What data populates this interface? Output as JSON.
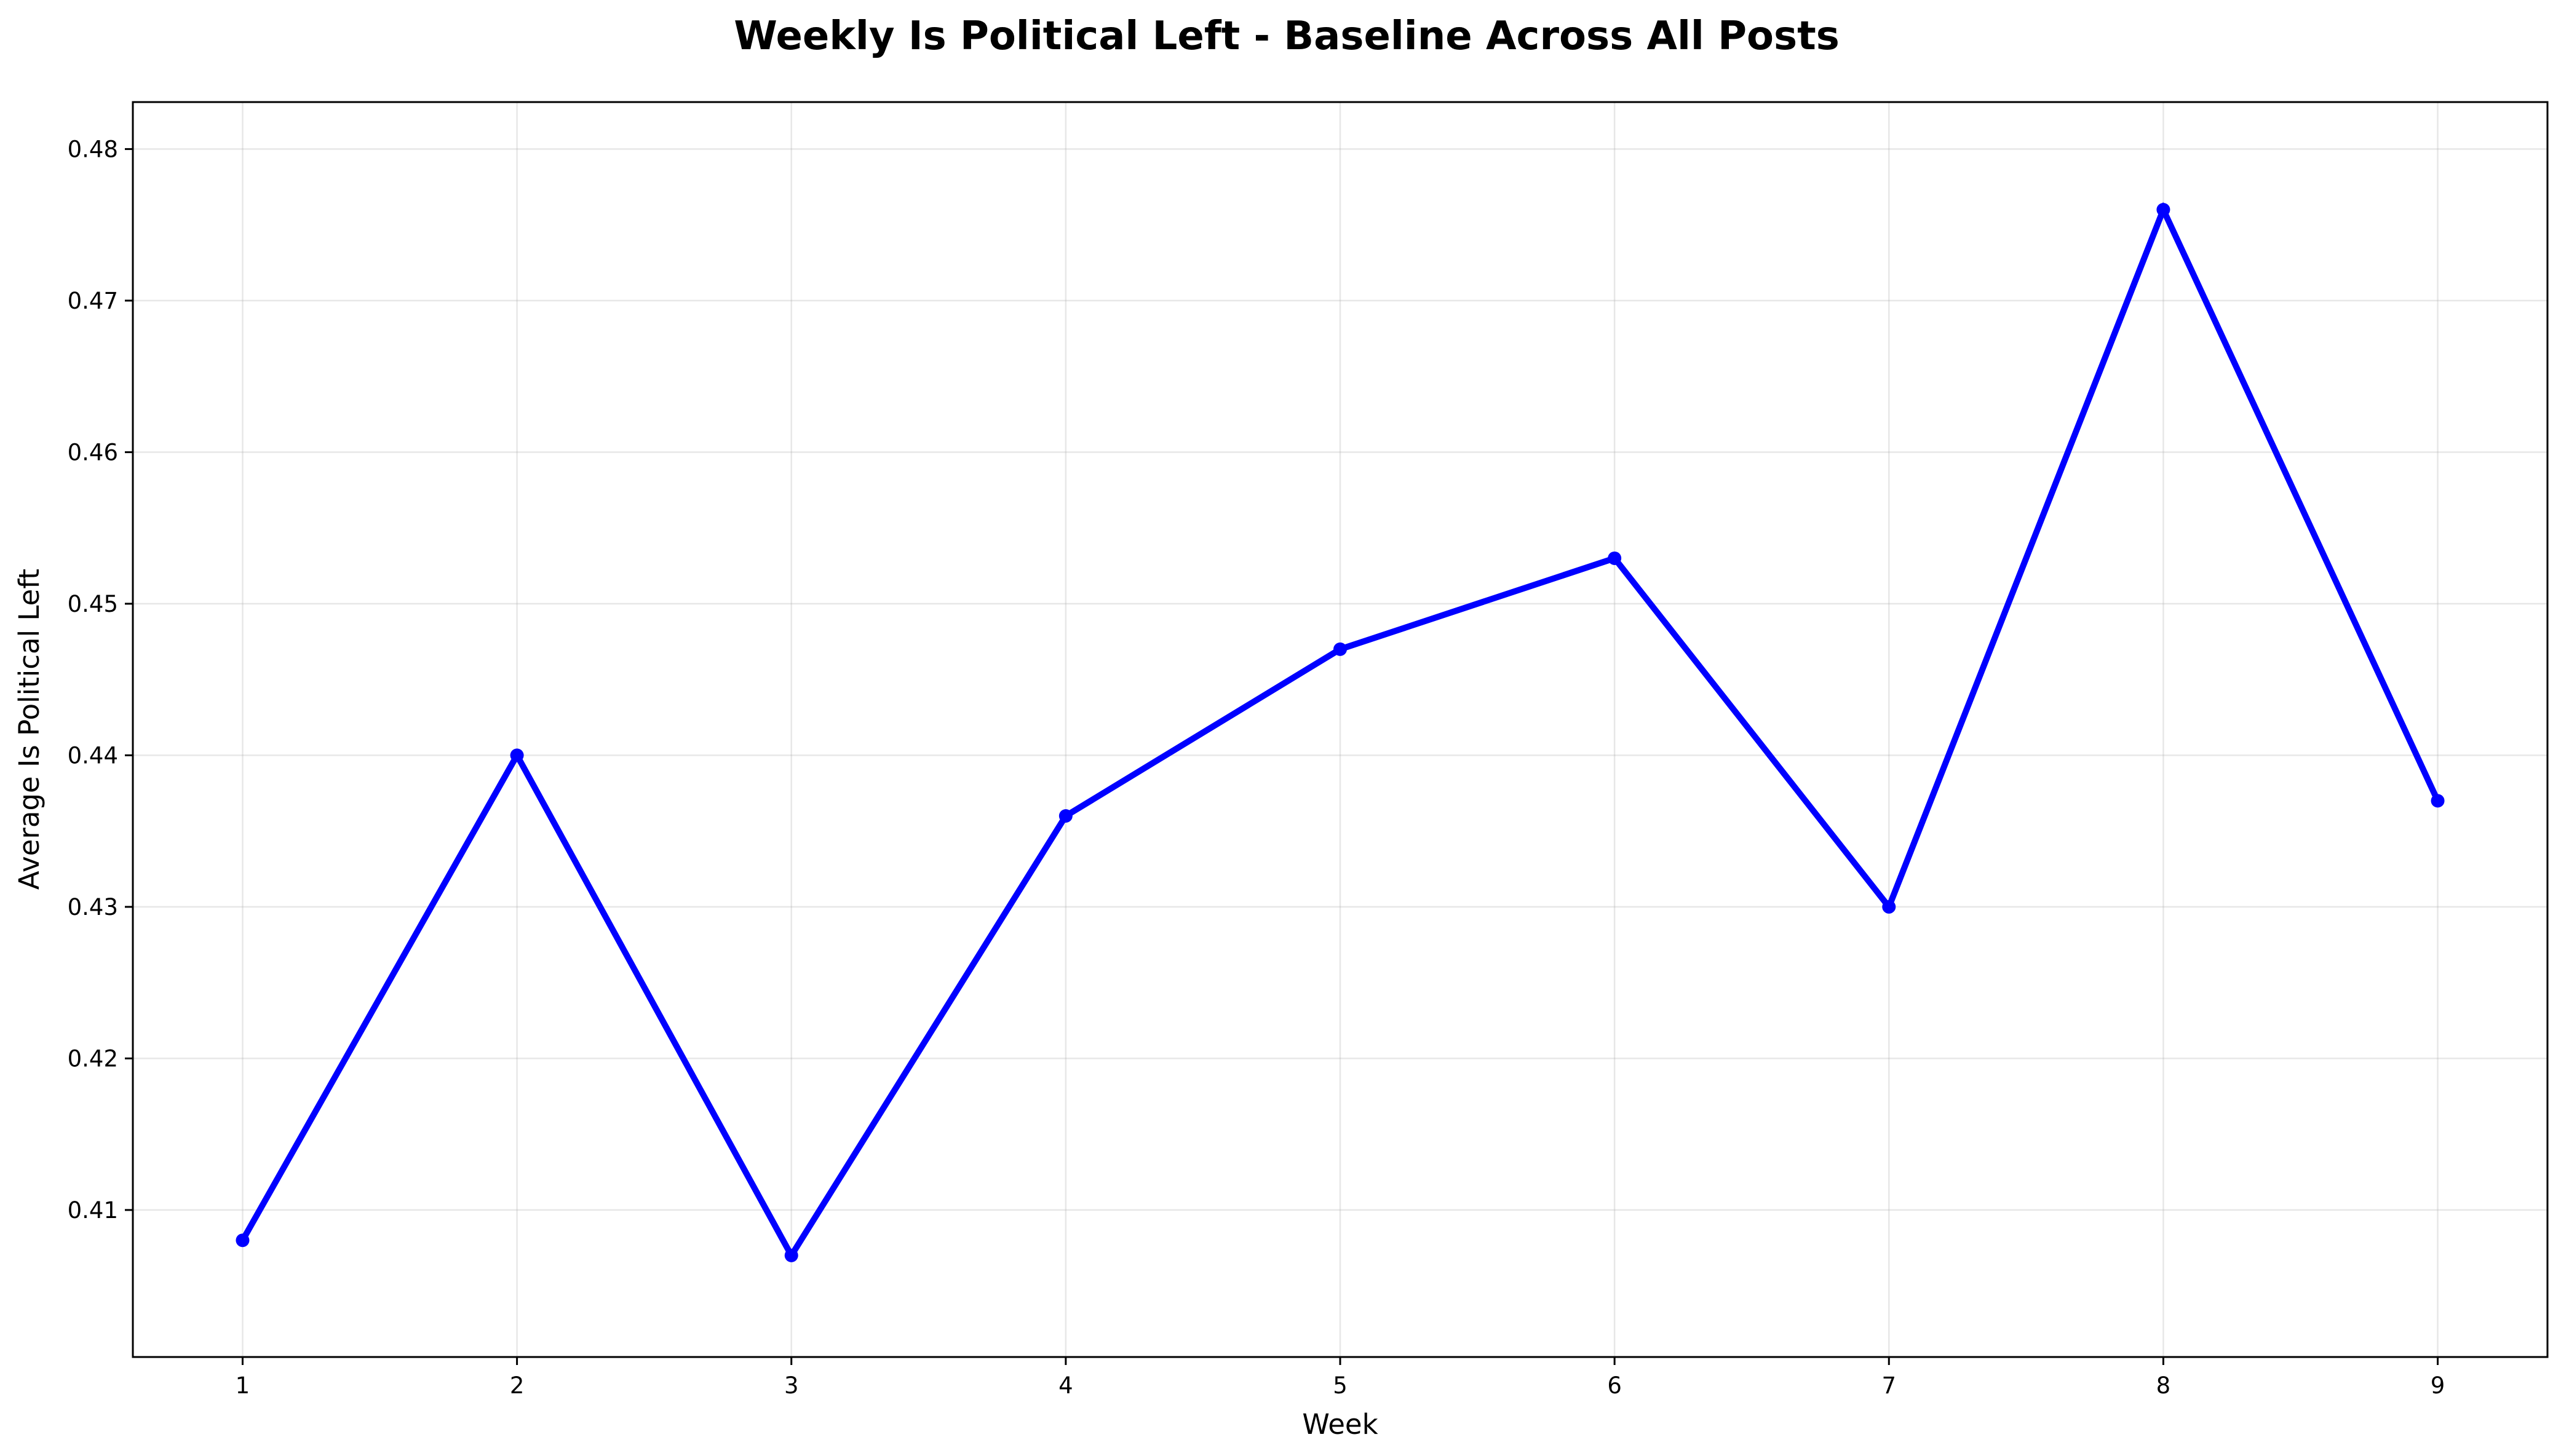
{
  "chart_data": {
    "type": "line",
    "title": "Weekly Is Political Left - Baseline Across All Posts",
    "xlabel": "Week",
    "ylabel": "Average Is Political Left",
    "x": [
      1,
      2,
      3,
      4,
      5,
      6,
      7,
      8,
      9
    ],
    "y": [
      0.408,
      0.44,
      0.407,
      0.436,
      0.447,
      0.453,
      0.43,
      0.476,
      0.437
    ],
    "xlim": [
      0.6,
      9.4
    ],
    "ylim": [
      0.4003,
      0.4831
    ],
    "x_ticks": [
      "1",
      "2",
      "3",
      "4",
      "5",
      "6",
      "7",
      "8",
      "9"
    ],
    "y_ticks": [
      "0.41",
      "0.42",
      "0.43",
      "0.44",
      "0.45",
      "0.46",
      "0.47",
      "0.48"
    ],
    "y_tick_values": [
      0.41,
      0.42,
      0.43,
      0.44,
      0.45,
      0.46,
      0.47,
      0.48
    ],
    "grid": true,
    "legend": "none",
    "line_color": "#0000ff",
    "marker": "circle"
  }
}
